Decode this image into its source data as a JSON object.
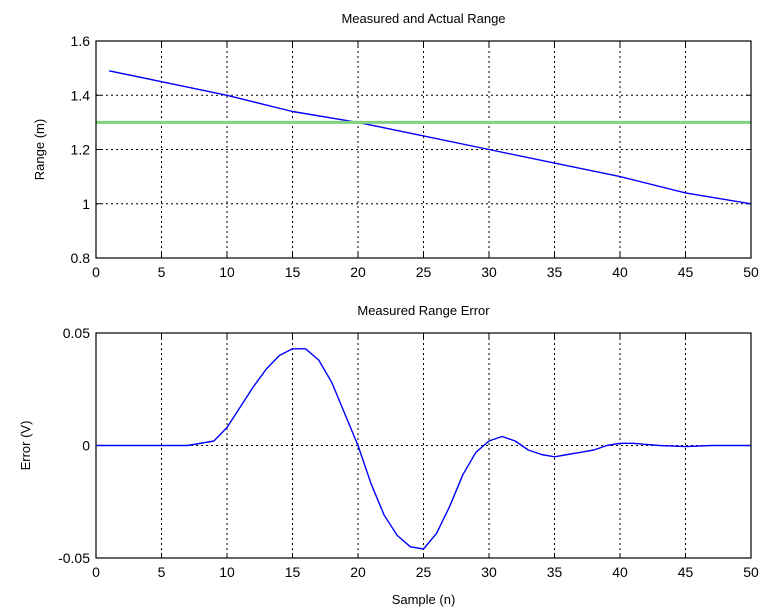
{
  "chart_data": [
    {
      "type": "line",
      "title": "Measured and Actual Range",
      "xlabel": "",
      "ylabel": "Range (m)",
      "xlim": [
        0,
        50
      ],
      "ylim": [
        0.8,
        1.6
      ],
      "x_ticks": [
        "0",
        "5",
        "10",
        "15",
        "20",
        "25",
        "30",
        "35",
        "40",
        "45",
        "50"
      ],
      "y_ticks": [
        "0.8",
        "1",
        "1.2",
        "1.4",
        "1.6"
      ],
      "grid": true,
      "series": [
        {
          "color": "#0000ff",
          "x": [
            1,
            5,
            10,
            15,
            20,
            25,
            30,
            35,
            40,
            45,
            50
          ],
          "y": [
            1.49,
            1.45,
            1.4,
            1.34,
            1.3,
            1.25,
            1.2,
            1.15,
            1.1,
            1.04,
            1.0
          ]
        },
        {
          "color": "#7fd17f",
          "x": [
            0,
            50
          ],
          "y": [
            1.3,
            1.3
          ]
        }
      ]
    },
    {
      "type": "line",
      "title": "Measured Range Error",
      "xlabel": "Sample (n)",
      "ylabel": "Error (V)",
      "xlim": [
        0,
        50
      ],
      "ylim": [
        -0.05,
        0.05
      ],
      "x_ticks": [
        "0",
        "5",
        "10",
        "15",
        "20",
        "25",
        "30",
        "35",
        "40",
        "45",
        "50"
      ],
      "y_ticks": [
        "-0.05",
        "0",
        "0.05"
      ],
      "grid": true,
      "series": [
        {
          "color": "#0000ff",
          "x": [
            0,
            7,
            9,
            10,
            11,
            12,
            13,
            14,
            15,
            16,
            17,
            18,
            19,
            20,
            21,
            22,
            23,
            24,
            25,
            26,
            27,
            28,
            29,
            30,
            31,
            32,
            33,
            34,
            35,
            36,
            37,
            38,
            39,
            40,
            41,
            42,
            43,
            45,
            47,
            50
          ],
          "y": [
            0,
            0,
            0.002,
            0.008,
            0.017,
            0.026,
            0.034,
            0.04,
            0.043,
            0.043,
            0.038,
            0.028,
            0.014,
            0,
            -0.017,
            -0.031,
            -0.04,
            -0.045,
            -0.046,
            -0.039,
            -0.027,
            -0.013,
            -0.003,
            0.002,
            0.004,
            0.002,
            -0.002,
            -0.004,
            -0.005,
            -0.004,
            -0.003,
            -0.002,
            0,
            0.001,
            0.001,
            0.0005,
            0,
            -0.0005,
            0,
            0
          ]
        }
      ]
    }
  ]
}
